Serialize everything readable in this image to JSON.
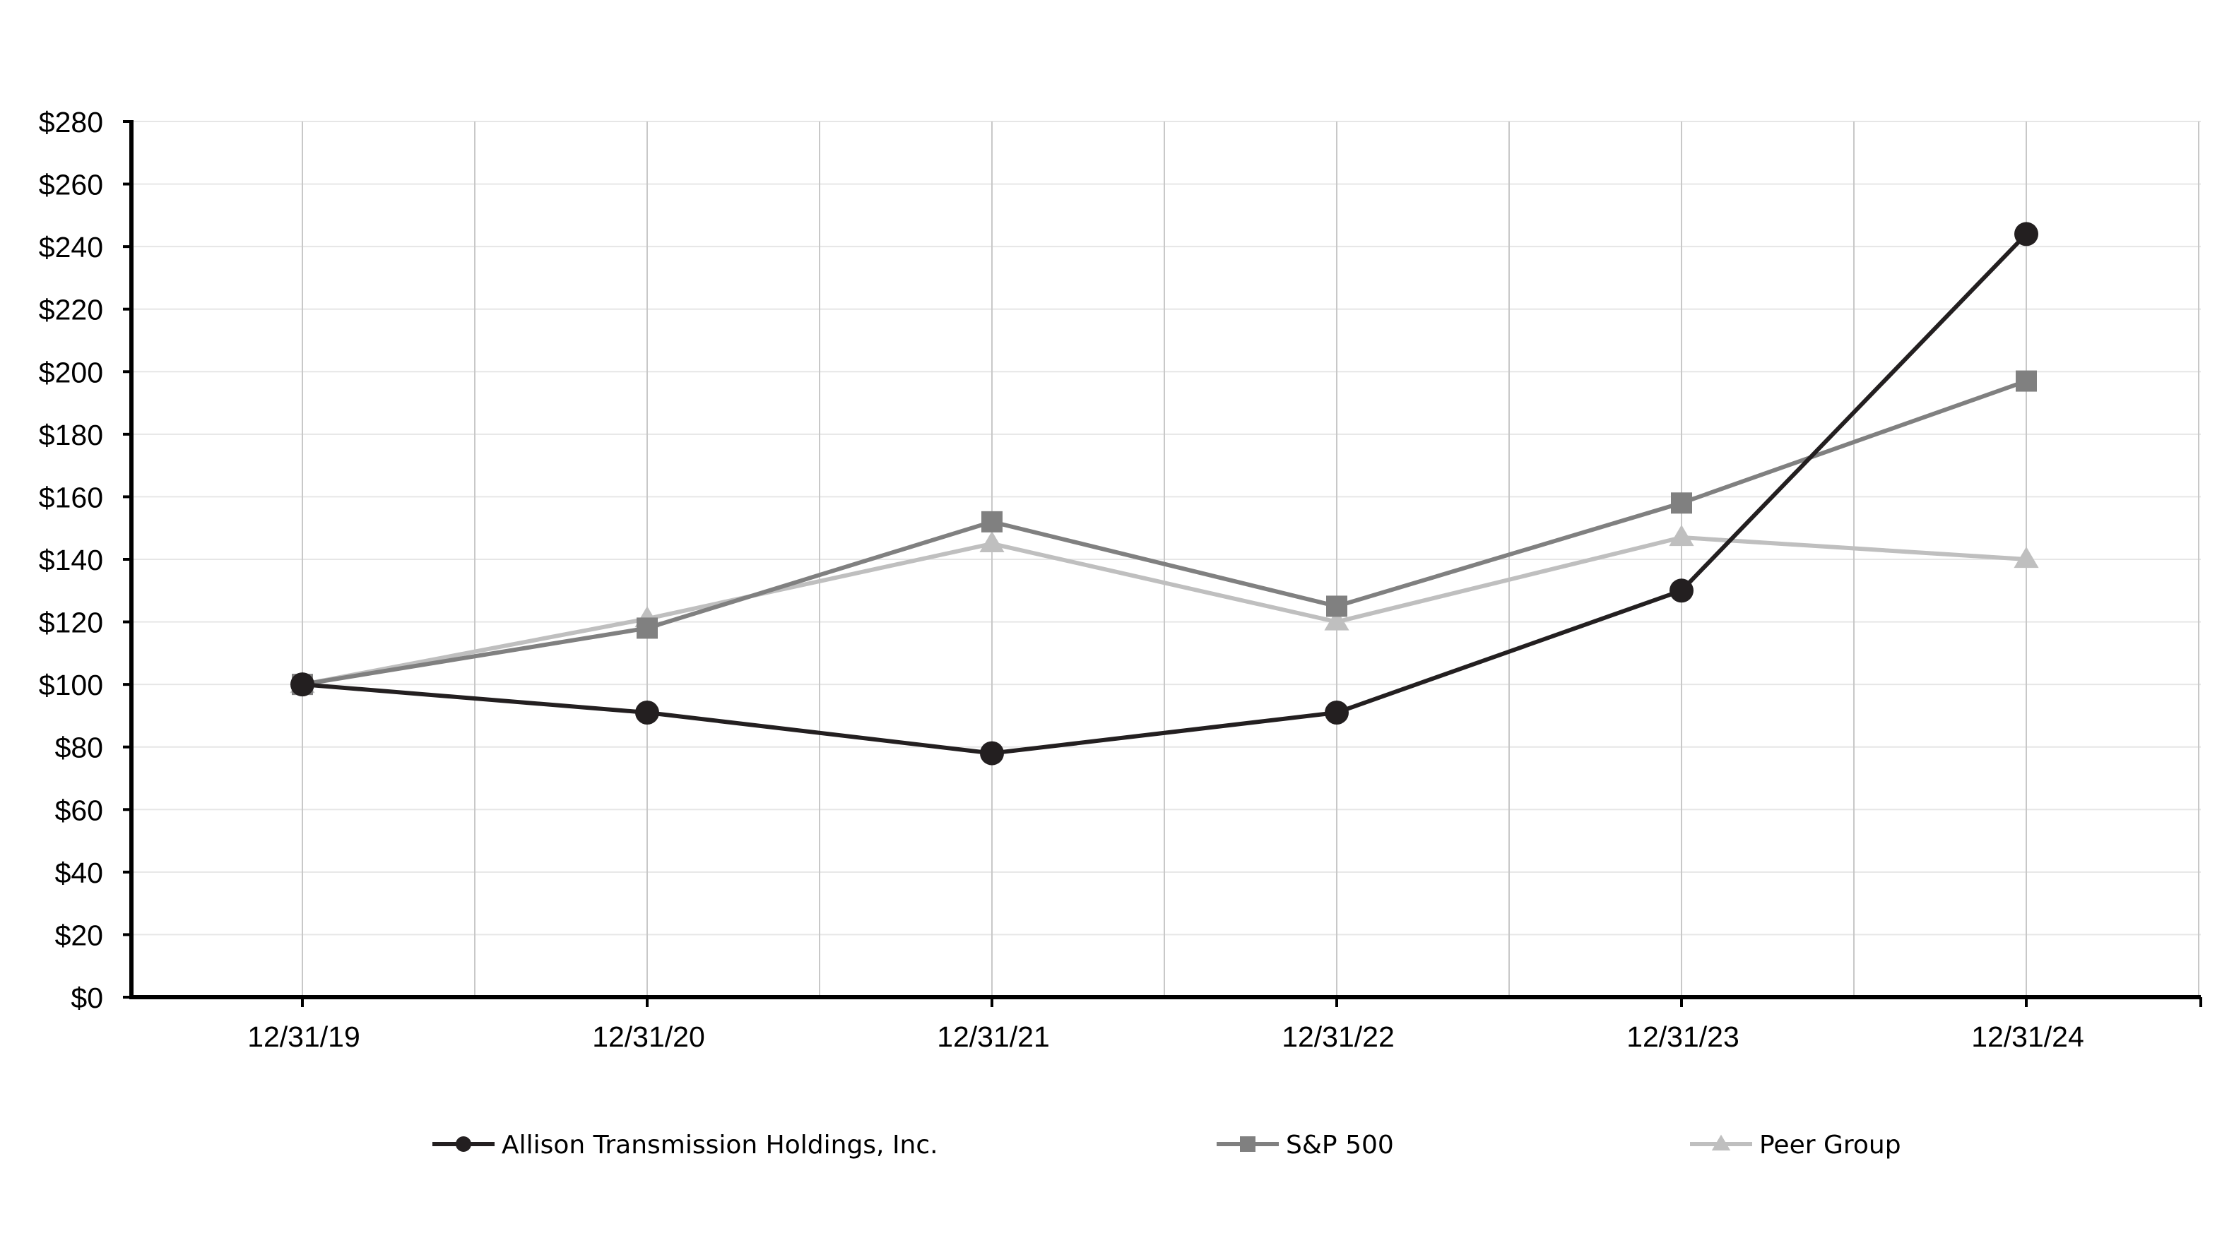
{
  "chart_data": {
    "type": "line",
    "title": "",
    "xlabel": "",
    "ylabel": "",
    "categories": [
      "12/31/19",
      "12/31/20",
      "12/31/21",
      "12/31/22",
      "12/31/23",
      "12/31/24"
    ],
    "ylim": [
      0,
      280
    ],
    "y_ticks": [
      0,
      20,
      40,
      60,
      80,
      100,
      120,
      140,
      160,
      180,
      200,
      220,
      240,
      260,
      280
    ],
    "y_tick_labels": [
      "$0",
      "$20",
      "$40",
      "$60",
      "$80",
      "$100",
      "$120",
      "$140",
      "$160",
      "$180",
      "$200",
      "$220",
      "$240",
      "$260",
      "$280"
    ],
    "grid": true,
    "legend_position": "bottom",
    "series": [
      {
        "name": "Allison Transmission Holdings, Inc.",
        "values": [
          100,
          91,
          78,
          91,
          130,
          244
        ],
        "color": "#231f20",
        "marker": "circle"
      },
      {
        "name": "S&P 500",
        "values": [
          100,
          118,
          152,
          125,
          158,
          197
        ],
        "color": "#808080",
        "marker": "square"
      },
      {
        "name": "Peer Group",
        "values": [
          100,
          121,
          145,
          120,
          147,
          140
        ],
        "color": "#bfbfbf",
        "marker": "triangle"
      }
    ]
  }
}
